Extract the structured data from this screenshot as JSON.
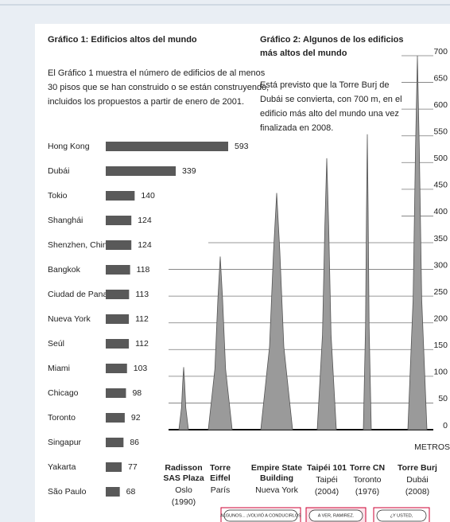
{
  "chart_data": [
    {
      "type": "bar",
      "orientation": "horizontal",
      "title": "Gráfico 1: Edificios altos del mundo",
      "description": [
        "El Gráfico 1 muestra el número de edificios de al menos",
        "30 pisos que se han construido o se están construyendo,",
        "incluidos los propuestos a partir de enero de 2001."
      ],
      "categories": [
        "Hong Kong",
        "Dubái",
        "Tokio",
        "Shanghái",
        "Shenzhen, China",
        "Bangkok",
        "Ciudad de Panamá",
        "Nueva York",
        "Seúl",
        "Miami",
        "Chicago",
        "Toronto",
        "Singapur",
        "Yakarta",
        "São Paulo"
      ],
      "values": [
        593,
        339,
        140,
        124,
        124,
        118,
        113,
        112,
        112,
        103,
        98,
        92,
        86,
        77,
        68
      ],
      "color": "#595959"
    },
    {
      "type": "building",
      "title": [
        "Gráfico 2: Algunos de los edificios",
        "más altos del mundo"
      ],
      "description": [
        "Está previsto que la Torre Burj de",
        "Dubái se convierta, con 700 m, en el",
        "edificio más alto del mundo una vez",
        "finalizada en 2008."
      ],
      "categories": [
        [
          "Radisson",
          "SAS Plaza"
        ],
        [
          "Torre",
          "Eiffel"
        ],
        [
          "Empire State",
          "Building"
        ],
        [
          "Taipéi 101"
        ],
        [
          "Torre CN"
        ],
        [
          "Torre Burj"
        ]
      ],
      "cities": [
        "Oslo",
        "París",
        "Nueva York",
        "Taipéi",
        "Toronto",
        "Dubái"
      ],
      "years": [
        "(1990)",
        null,
        null,
        "(2004)",
        "(1976)",
        "(2008)"
      ],
      "values": [
        117,
        324,
        443,
        508,
        553,
        700
      ],
      "color": "#9a9a9a",
      "y_label": "METROS",
      "ylim": [
        0,
        700
      ],
      "yticks": [
        0,
        50,
        100,
        150,
        200,
        250,
        300,
        350,
        400,
        450,
        500,
        550,
        600,
        650,
        700
      ]
    }
  ],
  "comic": [
    "ALGUNOS... ¡VOLVIÓ A CONDUCIRLOS",
    "A VER, RAMIREZ.",
    "¿Y USTED,"
  ]
}
